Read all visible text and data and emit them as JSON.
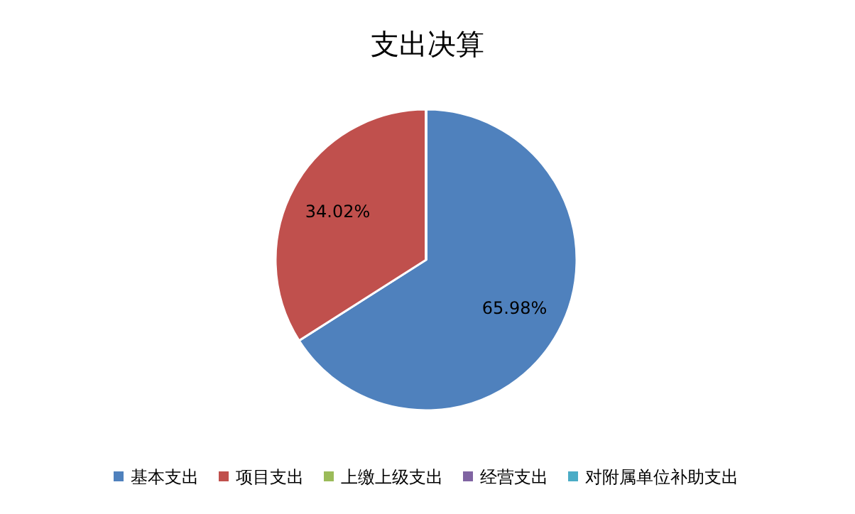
{
  "chart_data": {
    "type": "pie",
    "title": "支出决算",
    "categories": [
      "基本支出",
      "项目支出",
      "上缴上级支出",
      "经营支出",
      "对附属单位补助支出"
    ],
    "values": [
      65.98,
      34.02,
      0,
      0,
      0
    ],
    "colors": [
      "#4f81bd",
      "#c0504d",
      "#9bbb59",
      "#8064a2",
      "#4bacc6"
    ],
    "value_labels": [
      "65.98%",
      "34.02%",
      null,
      null,
      null
    ],
    "legend": "bottom"
  }
}
